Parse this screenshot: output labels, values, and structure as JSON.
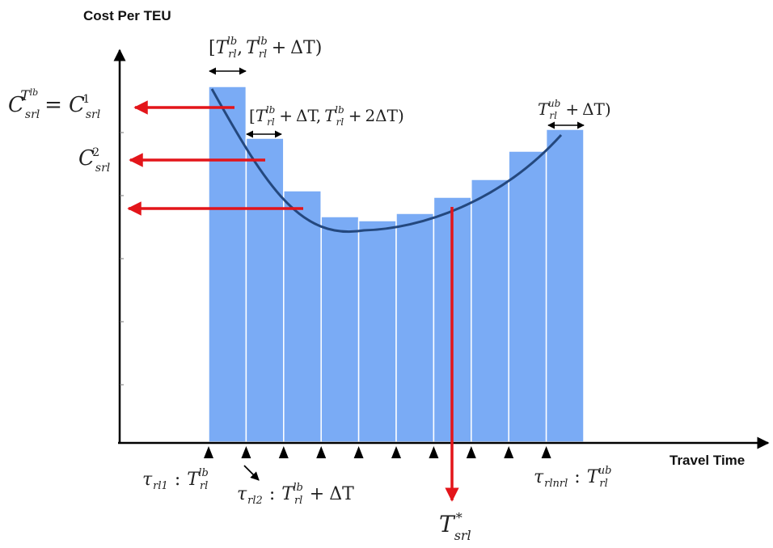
{
  "axes": {
    "y_title": "Cost Per TEU",
    "x_title": "Travel Time"
  },
  "bars": {
    "heights": [
      440,
      376,
      311,
      279,
      274,
      283,
      303,
      325,
      360,
      387
    ],
    "color": "#7aabf5"
  },
  "annotations": {
    "interval_first": {
      "open": "[",
      "t1": "T",
      "t1_sub": "rl",
      "t1_sup": "lb",
      "sep": ",",
      "t2": "T",
      "t2_sub": "rl",
      "t2_sup": "lb",
      "plus": "+",
      "delta": "ΔT",
      "close": ")"
    },
    "interval_second": {
      "open": "[",
      "t1": "T",
      "t1_sub": "rl",
      "t1_sup": "lb",
      "p1": "+",
      "d1": "ΔT,",
      "t2": "T",
      "t2_sub": "rl",
      "t2_sup": "lb",
      "p2": "+",
      "d2": "2ΔT",
      "close": ")"
    },
    "interval_last": {
      "t": "T",
      "t_sub": "rl",
      "t_sup": "ub",
      "plus": "+",
      "delta": "ΔT",
      "close": ")"
    },
    "cost_first": {
      "c": "C",
      "c_sub": "srl",
      "t": "T",
      "t_sup": "lb",
      "eq": "=",
      "c2": "C",
      "c2_sub": "srl",
      "c2_sup": "1"
    },
    "cost_second": {
      "c": "C",
      "c_sub": "srl",
      "c_sup": "2"
    },
    "tick_first": {
      "tau": "τ",
      "tau_sub": "rl1",
      "colon": ":",
      "t": "T",
      "t_sub": "rl",
      "t_sup": "lb"
    },
    "tick_second": {
      "tau": "τ",
      "tau_sub": "rl2",
      "colon": ":",
      "t": "T",
      "t_sub": "rl",
      "t_sup": "lb",
      "plus": "+",
      "delta": "ΔT"
    },
    "tick_last": {
      "tau": "τ",
      "tau_sub": "rlnrl",
      "colon": ":",
      "t": "T",
      "t_sub": "rl",
      "t_sup": "ub"
    },
    "optimum": {
      "t": "T",
      "t_sup": "*",
      "t_sub": "srl"
    }
  },
  "colors": {
    "arrow": "#e3151a",
    "curve": "#24487e",
    "axis": "#000000"
  }
}
